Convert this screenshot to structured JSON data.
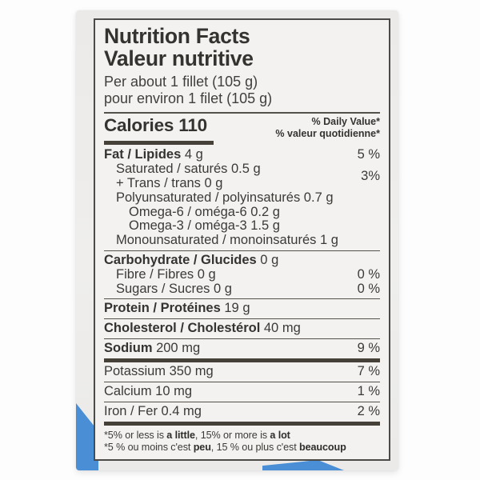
{
  "colors": {
    "accent_blue": "#4a8fd6",
    "package_background": "#edeceb",
    "label_background": "#f3f2f0",
    "text": "#3b3a37",
    "rule": "#55524c"
  },
  "label": {
    "title_en": "Nutrition Facts",
    "title_fr": "Valeur nutritive",
    "serving_en": "Per about 1 fillet (105 g)",
    "serving_fr": "pour environ 1 filet (105 g)",
    "calories_label": "Calories",
    "calories_value": "110",
    "dv_header_en": "% Daily Value*",
    "dv_header_fr": "% valeur quotidienne*",
    "rows": {
      "fat": {
        "bold": "Fat / Lipides",
        "rest": " 4 g",
        "dv": "5 %"
      },
      "saturated": {
        "rest": "Saturated / saturés 0.5 g"
      },
      "trans": {
        "rest": "+ Trans / trans 0 g"
      },
      "sat_trans_dv": "3%",
      "polyunsaturated": {
        "rest": "Polyunsaturated / polyinsaturés 0.7 g"
      },
      "omega6": {
        "rest": "Omega-6 / oméga-6 0.2 g"
      },
      "omega3": {
        "rest": "Omega-3 / oméga-3 1.5 g"
      },
      "monounsaturated": {
        "rest": "Monounsaturated / monoinsaturés 1 g"
      },
      "carbohydrate": {
        "bold": "Carbohydrate / Glucides",
        "rest": " 0 g"
      },
      "fibre": {
        "rest": "Fibre / Fibres 0 g",
        "dv": "0 %"
      },
      "sugars": {
        "rest": "Sugars / Sucres 0 g",
        "dv": "0 %"
      },
      "protein": {
        "bold": "Protein / Protéines",
        "rest": " 19 g"
      },
      "cholesterol": {
        "bold": "Cholesterol / Cholestérol",
        "rest": " 40 mg"
      },
      "sodium": {
        "bold": "Sodium",
        "rest": " 200 mg",
        "dv": "9 %"
      },
      "potassium": {
        "rest": "Potassium 350 mg",
        "dv": "7 %"
      },
      "calcium": {
        "rest": "Calcium 10 mg",
        "dv": "1 %"
      },
      "iron": {
        "rest": "Iron / Fer 0.4 mg",
        "dv": "2 %"
      }
    },
    "footnote_en": [
      "*5% or less is ",
      "a little",
      ", 15% or more is ",
      "a lot"
    ],
    "footnote_fr": [
      "*5 % ou moins c'est ",
      "peu",
      ", 15 % ou plus c'est ",
      "beaucoup"
    ]
  }
}
